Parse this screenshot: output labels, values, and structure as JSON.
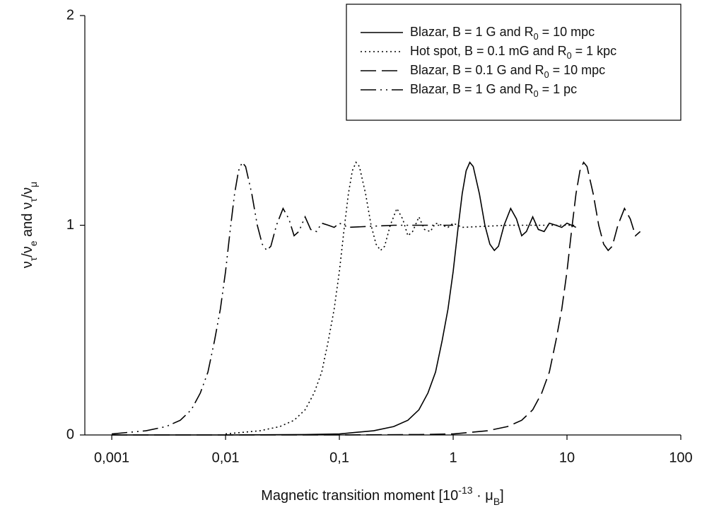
{
  "chart_data": {
    "type": "line",
    "x_label": [
      "Magnetic transition moment [10",
      "-13",
      " · μ",
      "B",
      "]"
    ],
    "y_label": [
      "ν",
      "τ",
      "/ν",
      "e",
      " and ν",
      "τ",
      "/ν",
      "μ"
    ],
    "x_scale": "log",
    "xlim": [
      0.00058,
      100
    ],
    "xticks": [
      {
        "value": 0.001,
        "label": "0,001"
      },
      {
        "value": 0.01,
        "label": "0,01"
      },
      {
        "value": 0.1,
        "label": "0,1"
      },
      1,
      10,
      100
    ],
    "ylim": [
      0,
      2
    ],
    "yticks": [
      0,
      1,
      2
    ],
    "grid": false,
    "legend": "upper right",
    "series": [
      {
        "name": [
          "Blazar, B = 1 G and R",
          "0",
          " = 10 mpc"
        ],
        "color": "#000000",
        "line_style": "solid",
        "x": [
          0.001,
          0.01,
          0.05,
          0.1,
          0.2,
          0.3,
          0.4,
          0.5,
          0.6,
          0.7,
          0.8,
          0.9,
          1.0,
          1.1,
          1.2,
          1.3,
          1.4,
          1.5,
          1.7,
          1.9,
          2.1,
          2.3,
          2.5,
          2.8,
          3.2,
          3.6,
          4.0,
          4.4,
          5.0,
          5.6,
          6.3,
          7.0,
          8.0,
          9.0,
          10,
          12
        ],
        "values": [
          0,
          0,
          0.002,
          0.005,
          0.02,
          0.04,
          0.07,
          0.12,
          0.2,
          0.3,
          0.45,
          0.6,
          0.78,
          0.98,
          1.15,
          1.26,
          1.3,
          1.28,
          1.15,
          1.0,
          0.91,
          0.88,
          0.9,
          1.0,
          1.08,
          1.03,
          0.95,
          0.97,
          1.04,
          0.98,
          0.97,
          1.01,
          1.0,
          0.99,
          1.01,
          0.99
        ]
      },
      {
        "name": [
          "Hot spot, B = 0.1 mG and R",
          "0",
          " = 1 kpc"
        ],
        "color": "#000000",
        "line_style": "dotted",
        "x": [
          0.01,
          0.02,
          0.03,
          0.04,
          0.05,
          0.06,
          0.07,
          0.08,
          0.09,
          0.1,
          0.11,
          0.12,
          0.13,
          0.14,
          0.15,
          0.17,
          0.19,
          0.21,
          0.23,
          0.25,
          0.28,
          0.32,
          0.36,
          0.4,
          0.44,
          0.5,
          0.56,
          0.63,
          0.7,
          0.8,
          0.9,
          1,
          1.2,
          3,
          6,
          12
        ],
        "values": [
          0.005,
          0.02,
          0.04,
          0.07,
          0.12,
          0.2,
          0.3,
          0.45,
          0.6,
          0.78,
          0.98,
          1.15,
          1.26,
          1.3,
          1.28,
          1.15,
          1.0,
          0.91,
          0.88,
          0.9,
          1.0,
          1.08,
          1.03,
          0.95,
          0.97,
          1.04,
          0.98,
          0.97,
          1.01,
          1.0,
          0.99,
          1.01,
          0.99,
          1,
          1,
          1
        ]
      },
      {
        "name": [
          "Blazar, B = 0.1 G and R",
          "0",
          " = 10 mpc"
        ],
        "color": "#000000",
        "line_style": "dashed",
        "x": [
          0.001,
          0.1,
          0.5,
          1,
          2,
          3,
          4,
          5,
          6,
          7,
          8,
          9,
          10,
          11,
          12,
          13,
          14,
          15,
          17,
          19,
          21,
          23,
          25,
          28,
          32,
          36,
          40,
          44
        ],
        "values": [
          0,
          0,
          0.002,
          0.005,
          0.02,
          0.04,
          0.07,
          0.12,
          0.2,
          0.3,
          0.45,
          0.6,
          0.78,
          0.98,
          1.15,
          1.26,
          1.3,
          1.28,
          1.15,
          1.0,
          0.91,
          0.88,
          0.9,
          1.0,
          1.08,
          1.03,
          0.95,
          0.97
        ]
      },
      {
        "name": [
          "Blazar, B = 1 G and R",
          "0",
          " = 1 pc"
        ],
        "color": "#000000",
        "line_style": "dash-dot-dot",
        "x": [
          0.001,
          0.002,
          0.003,
          0.004,
          0.005,
          0.006,
          0.007,
          0.008,
          0.009,
          0.01,
          0.011,
          0.012,
          0.013,
          0.014,
          0.015,
          0.017,
          0.019,
          0.021,
          0.023,
          0.025,
          0.028,
          0.032,
          0.036,
          0.04,
          0.044,
          0.05,
          0.056,
          0.063,
          0.07,
          0.08,
          0.09,
          0.1,
          0.12,
          0.3,
          1
        ],
        "values": [
          0.005,
          0.02,
          0.04,
          0.07,
          0.12,
          0.2,
          0.3,
          0.45,
          0.6,
          0.78,
          0.98,
          1.15,
          1.26,
          1.3,
          1.28,
          1.15,
          1.0,
          0.91,
          0.88,
          0.9,
          1.0,
          1.08,
          1.03,
          0.95,
          0.97,
          1.04,
          0.98,
          0.97,
          1.01,
          1.0,
          0.99,
          1.01,
          0.99,
          1,
          1
        ]
      }
    ]
  }
}
